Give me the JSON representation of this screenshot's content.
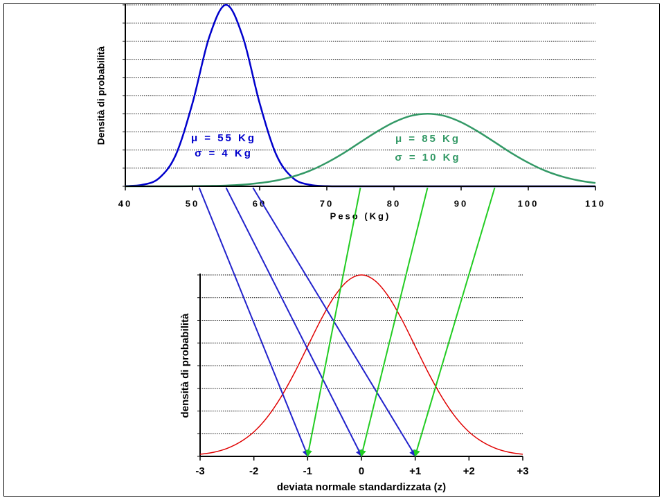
{
  "chart_data": [
    {
      "type": "line",
      "xlabel": "Peso (Kg)",
      "ylabel": "Densità di probabilità",
      "x": [
        40,
        42.5,
        45,
        47.5,
        50,
        52.5,
        55,
        57.5,
        60,
        62.5,
        65,
        67.5,
        70,
        72.5,
        75,
        77.5,
        80,
        82.5,
        85,
        87.5,
        90,
        92.5,
        95,
        97.5,
        100,
        102.5,
        105,
        107.5,
        110
      ],
      "series": [
        {
          "color": "#0000cc",
          "values": [
            0.01,
            0.08,
            0.44,
            1.72,
            4.58,
            8.23,
            10,
            8.23,
            4.58,
            1.72,
            0.44,
            0.08,
            0.01,
            0,
            0,
            0,
            0,
            0,
            0,
            0,
            0,
            0,
            0,
            0,
            0,
            0,
            0,
            0,
            0
          ]
        },
        {
          "color": "#339966",
          "values": [
            0,
            0,
            0,
            0,
            0.01,
            0.02,
            0.04,
            0.09,
            0.18,
            0.32,
            0.54,
            0.86,
            1.3,
            1.83,
            2.43,
            3.02,
            3.53,
            3.88,
            4,
            3.88,
            3.53,
            3.02,
            2.43,
            1.83,
            1.3,
            0.86,
            0.54,
            0.32,
            0.18
          ]
        }
      ],
      "xlim": [
        40,
        110
      ],
      "xticks": [
        40,
        50,
        60,
        70,
        80,
        90,
        100,
        110
      ],
      "ylim": [
        0,
        10
      ],
      "yticks": [
        0,
        1,
        2,
        3,
        4,
        5,
        6,
        7,
        8,
        9,
        10
      ],
      "grid": true,
      "annotations": [
        {
          "text": "μ = 55 Kg",
          "color": "#0000cc"
        },
        {
          "text": "σ = 4 Kg",
          "color": "#0000cc"
        },
        {
          "text": "μ = 85 Kg",
          "color": "#339966"
        },
        {
          "text": "σ = 10 Kg",
          "color": "#339966"
        }
      ]
    },
    {
      "type": "line",
      "xlabel": "deviata normale standardizzata (z)",
      "ylabel": "densità di probabilità",
      "x": [
        -3,
        -2.75,
        -2.5,
        -2.25,
        -2,
        -1.75,
        -1.5,
        -1.25,
        -1,
        -0.75,
        -0.5,
        -0.25,
        0,
        0.25,
        0.5,
        0.75,
        1,
        1.25,
        1.5,
        1.75,
        2,
        2.25,
        2.5,
        2.75,
        3
      ],
      "series": [
        {
          "color": "#e00000",
          "values": [
            0.09,
            0.18,
            0.35,
            0.64,
            1.08,
            1.73,
            2.6,
            3.66,
            4.85,
            6.04,
            7.06,
            7.75,
            8,
            7.75,
            7.06,
            6.04,
            4.85,
            3.66,
            2.6,
            1.73,
            1.08,
            0.64,
            0.35,
            0.18,
            0.09
          ]
        }
      ],
      "xlim": [
        -3,
        3
      ],
      "xticks": [
        -3,
        -2,
        -1,
        0,
        {
          "value": 1,
          "label": "+1"
        },
        {
          "value": 2,
          "label": "+2"
        },
        {
          "value": 3,
          "label": "+3"
        }
      ],
      "ylim": [
        0,
        8
      ],
      "yticks": [
        0,
        1,
        2,
        3,
        4,
        5,
        6,
        7,
        8
      ],
      "grid": true
    }
  ],
  "arrows": [
    {
      "color": "#2222cc",
      "from": 51,
      "to": -1
    },
    {
      "color": "#2222cc",
      "from": 55,
      "to": 0
    },
    {
      "color": "#2222cc",
      "from": 59,
      "to": 1
    },
    {
      "color": "#22cc22",
      "from": 75,
      "to": -1
    },
    {
      "color": "#22cc22",
      "from": 85,
      "to": 0
    },
    {
      "color": "#22cc22",
      "from": 95,
      "to": 1
    }
  ]
}
